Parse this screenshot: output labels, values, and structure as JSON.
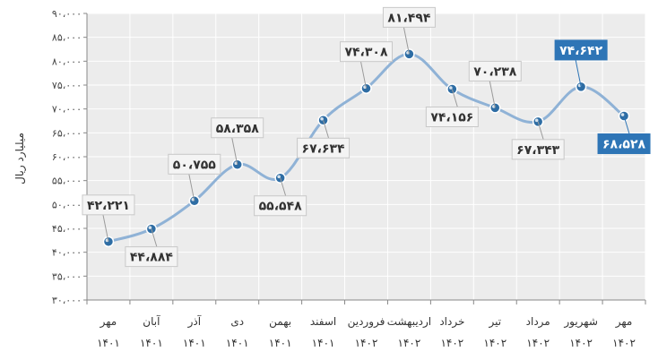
{
  "chart_data": {
    "type": "line",
    "ylabel": "میلیارد ریال",
    "ylim": [
      30000,
      90000
    ],
    "yticks": [
      "۳۰،۰۰۰",
      "۳۵،۰۰۰",
      "۴۰،۰۰۰",
      "۴۵،۰۰۰",
      "۵۰،۰۰۰",
      "۵۵،۰۰۰",
      "۶۰،۰۰۰",
      "۶۵،۰۰۰",
      "۷۰،۰۰۰",
      "۷۵،۰۰۰",
      "۸۰،۰۰۰",
      "۸۵،۰۰۰",
      "۹۰،۰۰۰"
    ],
    "categories": [
      {
        "month": "مهر",
        "year": "۱۴۰۱"
      },
      {
        "month": "آبان",
        "year": "۱۴۰۱"
      },
      {
        "month": "آذر",
        "year": "۱۴۰۱"
      },
      {
        "month": "دی",
        "year": "۱۴۰۱"
      },
      {
        "month": "بهمن",
        "year": "۱۴۰۱"
      },
      {
        "month": "اسفند",
        "year": "۱۴۰۱"
      },
      {
        "month": "فروردین",
        "year": "۱۴۰۲"
      },
      {
        "month": "اردیبهشت",
        "year": "۱۴۰۲"
      },
      {
        "month": "خرداد",
        "year": "۱۴۰۲"
      },
      {
        "month": "تیر",
        "year": "۱۴۰۲"
      },
      {
        "month": "مرداد",
        "year": "۱۴۰۲"
      },
      {
        "month": "شهریور",
        "year": "۱۴۰۲"
      },
      {
        "month": "مهر",
        "year": "۱۴۰۲"
      }
    ],
    "values": [
      42221,
      44884,
      50755,
      58358,
      55548,
      67634,
      74308,
      81494,
      74156,
      70238,
      67343,
      74642,
      68528
    ],
    "data_labels": [
      "۴۲،۲۲۱",
      "۴۴،۸۸۴",
      "۵۰،۷۵۵",
      "۵۸،۳۵۸",
      "۵۵،۵۴۸",
      "۶۷،۶۳۴",
      "۷۴،۳۰۸",
      "۸۱،۴۹۴",
      "۷۴،۱۵۶",
      "۷۰،۲۳۸",
      "۶۷،۳۴۳",
      "۷۴،۶۴۲",
      "۶۸،۵۲۸"
    ],
    "label_positions": [
      "above",
      "below",
      "above",
      "above",
      "below",
      "below",
      "above",
      "above",
      "below",
      "above",
      "below",
      "above",
      "below"
    ],
    "highlighted": [
      11,
      12
    ],
    "colors": {
      "line": "#8fb2d6",
      "marker": "#2e6da4",
      "highlight_bg": "#2e75b6",
      "label_bg": "#f4f4f4",
      "label_border": "#c8c8c8",
      "plot_bg": "#ececec",
      "grid": "#ffffff"
    },
    "grid": true
  }
}
